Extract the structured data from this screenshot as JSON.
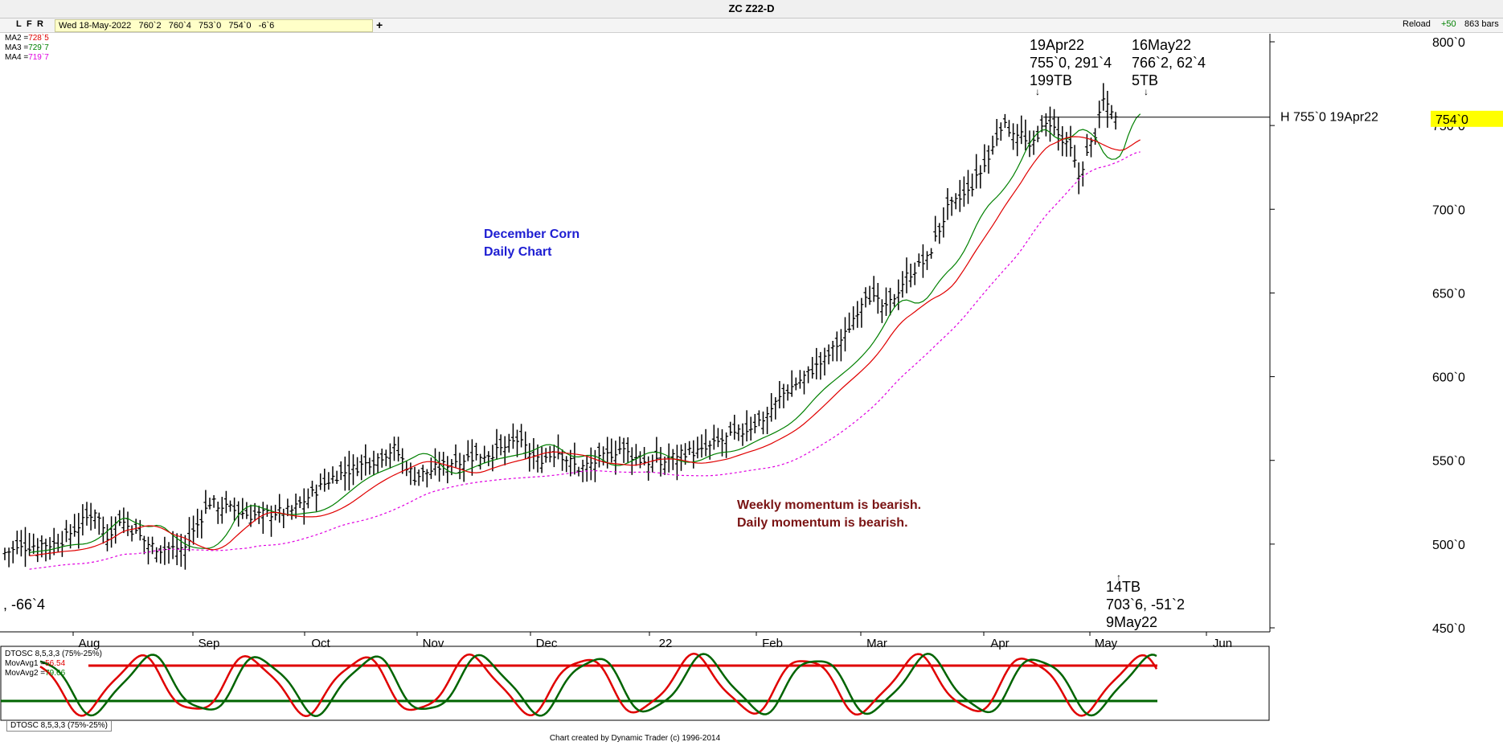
{
  "window": {
    "title": "ZC Z22-D"
  },
  "toolbar": {
    "buttons": [
      "L",
      "F",
      "R"
    ],
    "info": "Wed 18-May-2022   760`2   760`4   753`0   754`0   -6`6",
    "add_label": "+",
    "reload_label": "Reload",
    "step_label": "+50",
    "bars_label": "863 bars"
  },
  "legend": {
    "ma2_label": "MA2 =",
    "ma2_value": "728`5",
    "ma3_label": "MA3 =",
    "ma3_value": "729`7",
    "ma4_label": "MA4 =",
    "ma4_value": "719`7"
  },
  "annotations": {
    "chart_title_1": "December Corn",
    "chart_title_2": "Daily Chart",
    "momentum_1": "Weekly momentum is bearish.",
    "momentum_2": "Daily momentum is bearish.",
    "top1_date": "19Apr22",
    "top1_values": "755`0, 291`4",
    "top1_tb": "199TB",
    "top2_date": "16May22",
    "top2_values": "766`2, 62`4",
    "top2_tb": "5TB",
    "low_tb": "14TB",
    "low_values": "703`6, -51`2",
    "low_date": "9May22",
    "left_partial": ", -66`4",
    "high_line_label": "H 755`0 19Apr22",
    "price_marker": "754`0"
  },
  "oscillator": {
    "name": "DTOSC 8,5,3,3 (75%-25%)",
    "movavg1_label": "MovAvg1 =",
    "movavg1_value": "56.54",
    "movavg2_label": "MovAvg2 =",
    "movavg2_value": "79.66",
    "tab_label": "DTOSC 8,5,3,3 (75%-25%)"
  },
  "footer": {
    "credit": "Chart created by Dynamic Trader  (c)  1996-2014"
  },
  "colors": {
    "ma2": "#e00000",
    "ma3": "#008000",
    "ma4": "#e000e0",
    "price_marker_bg": "#ffff00",
    "annot_blue": "#1e1ed2",
    "annot_brown": "#7a1414"
  },
  "chart_data": {
    "type": "ohlc",
    "y_ticks": [
      "800`0",
      "750`0",
      "700`0",
      "650`0",
      "600`0",
      "550`0",
      "500`0",
      "450`0"
    ],
    "ylim": [
      450,
      800
    ],
    "x_ticks": [
      "Aug",
      "Sep",
      "Oct",
      "Nov",
      "Dec",
      "22",
      "Feb",
      "Mar",
      "Apr",
      "May",
      "Jun"
    ],
    "close_path": [
      [
        0,
        495
      ],
      [
        8,
        500
      ],
      [
        13,
        500
      ],
      [
        22,
        520
      ],
      [
        25,
        505
      ],
      [
        28,
        515
      ],
      [
        35,
        500
      ],
      [
        38,
        497
      ],
      [
        44,
        498
      ],
      [
        50,
        525
      ],
      [
        60,
        517
      ],
      [
        70,
        520
      ],
      [
        80,
        540
      ],
      [
        90,
        550
      ],
      [
        95,
        557
      ],
      [
        100,
        540
      ],
      [
        110,
        550
      ],
      [
        120,
        555
      ],
      [
        125,
        562
      ],
      [
        130,
        550
      ],
      [
        135,
        555
      ],
      [
        140,
        545
      ],
      [
        145,
        550
      ],
      [
        150,
        557
      ],
      [
        155,
        550
      ],
      [
        160,
        548
      ],
      [
        165,
        555
      ],
      [
        170,
        555
      ],
      [
        175,
        562
      ],
      [
        180,
        567
      ],
      [
        185,
        575
      ],
      [
        190,
        590
      ],
      [
        200,
        610
      ],
      [
        205,
        625
      ],
      [
        210,
        650
      ],
      [
        215,
        640
      ],
      [
        220,
        660
      ],
      [
        225,
        670
      ],
      [
        230,
        700
      ],
      [
        235,
        710
      ],
      [
        240,
        730
      ],
      [
        243,
        750
      ],
      [
        248,
        745
      ],
      [
        250,
        735
      ],
      [
        252,
        745
      ],
      [
        255,
        752
      ],
      [
        258,
        740
      ],
      [
        260,
        735
      ],
      [
        262,
        720
      ],
      [
        266,
        745
      ],
      [
        268,
        765
      ],
      [
        270,
        760
      ],
      [
        271,
        754
      ]
    ],
    "high_line": 755,
    "last_close": 754,
    "ma_series": [
      {
        "name": "MA2",
        "color": "#e00000",
        "last": 728.625
      },
      {
        "name": "MA3",
        "color": "#008000",
        "last": 729.875
      },
      {
        "name": "MA4",
        "color": "#e000e0",
        "last": 719.875
      }
    ]
  }
}
